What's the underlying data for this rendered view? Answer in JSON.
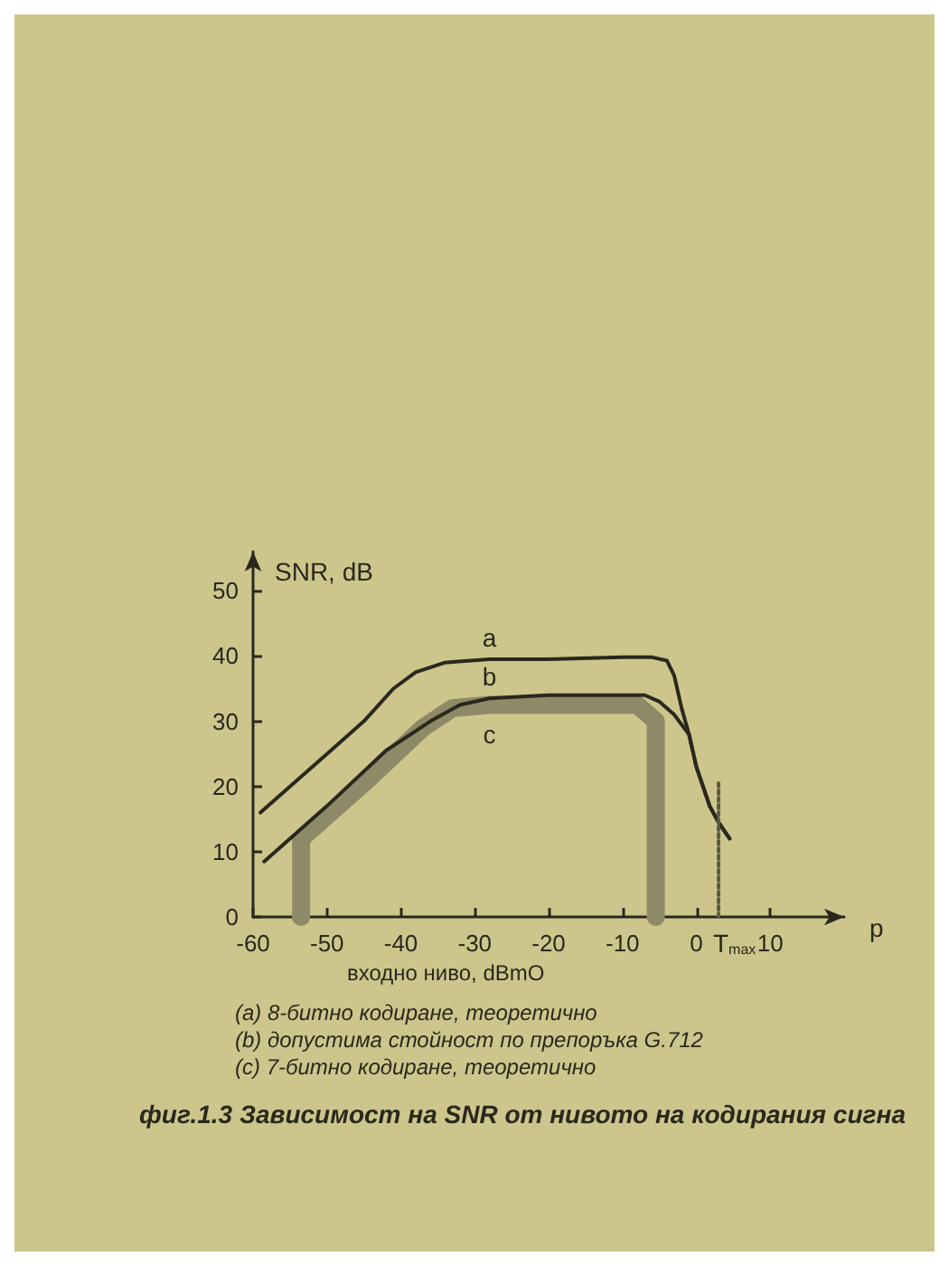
{
  "chart_data": {
    "type": "line",
    "title": "фиг.1.3 Зависимост на SNR от нивото на кодирания сигна",
    "xlabel": "p",
    "ylabel": "SNR, dB",
    "annotations": [
      "входно ниво, dBmO",
      "(a) 8-битно кодиране, теоретично",
      "(b) допустима стойност по препоръка G.712",
      "(c) 7-битно кодиране, теоретично"
    ],
    "xlim": [
      -60,
      20
    ],
    "ylim": [
      0,
      56
    ],
    "xticks": [
      -60,
      -50,
      -40,
      -30,
      -20,
      -10,
      0,
      10
    ],
    "yticks": [
      0,
      10,
      20,
      30,
      40,
      50
    ],
    "marker": "none",
    "series": [
      {
        "name": "a",
        "color": "#2a281c",
        "x": [
          -59,
          -50,
          -45,
          -41,
          -38,
          -34,
          -28,
          -20,
          -10,
          -6,
          -4,
          -3,
          -2,
          -1,
          0,
          1.8,
          3,
          4.5
        ],
        "values": [
          16,
          25,
          30,
          35,
          37.5,
          39,
          39.5,
          39.5,
          39.8,
          39.8,
          39.3,
          37,
          32,
          28,
          23,
          17,
          14.5,
          12
        ]
      },
      {
        "name": "b",
        "color": "#2a281c",
        "x": [
          -58.5,
          -50,
          -42,
          -36,
          -32,
          -28,
          -20,
          -10,
          -7,
          -5,
          -3,
          -2,
          -1,
          0,
          1.8,
          3,
          4.5
        ],
        "values": [
          8.5,
          17,
          25.5,
          30,
          32.5,
          33.5,
          34,
          34,
          34,
          33,
          31,
          29.5,
          28,
          23,
          17,
          14.5,
          12
        ]
      },
      {
        "name": "c",
        "color": "#8e8a68",
        "x": [
          -53.5,
          -53.5,
          -45,
          -37,
          -33,
          -28,
          -8,
          -5.5,
          -5.5
        ],
        "values": [
          0,
          12,
          20.5,
          29,
          32,
          32.5,
          32.5,
          30,
          0
        ]
      },
      {
        "name": "T$_{max}$",
        "color": "#5c5942",
        "x": [
          3,
          3
        ],
        "values": [
          0,
          21
        ],
        "line_style": "dotted"
      }
    ]
  }
}
